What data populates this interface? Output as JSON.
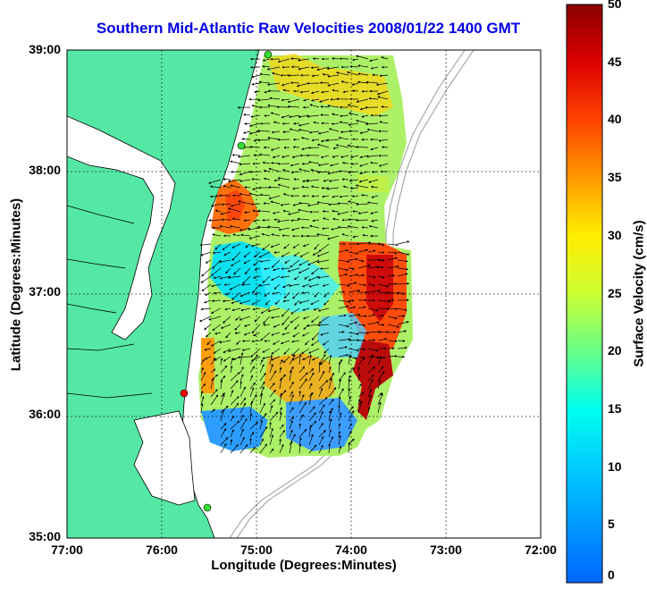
{
  "title": "Southern Mid-Atlantic Raw Velocities 2008/01/22 1400 GMT",
  "xlabel": "Longitude (Degrees:Minutes)",
  "ylabel": "Latitude (Degrees:Minutes)",
  "x_ticks": [
    "77:00",
    "76:00",
    "75:00",
    "74:00",
    "73:00",
    "72:00"
  ],
  "y_ticks": [
    "39:00",
    "38:00",
    "37:00",
    "36:00",
    "35:00"
  ],
  "colorbar": {
    "label": "Surface Velocity (cm/s)",
    "ticks": [
      "0",
      "5",
      "10",
      "15",
      "20",
      "25",
      "30",
      "35",
      "40",
      "45",
      "50"
    ],
    "range": [
      0,
      50
    ]
  },
  "colors": {
    "land": "#55e8a4",
    "title": "#0000e6",
    "station_green": "#33dd33",
    "station_red": "#ff0000"
  },
  "map_extent": {
    "lon": [
      -77,
      -72
    ],
    "lat": [
      35,
      39
    ]
  }
}
